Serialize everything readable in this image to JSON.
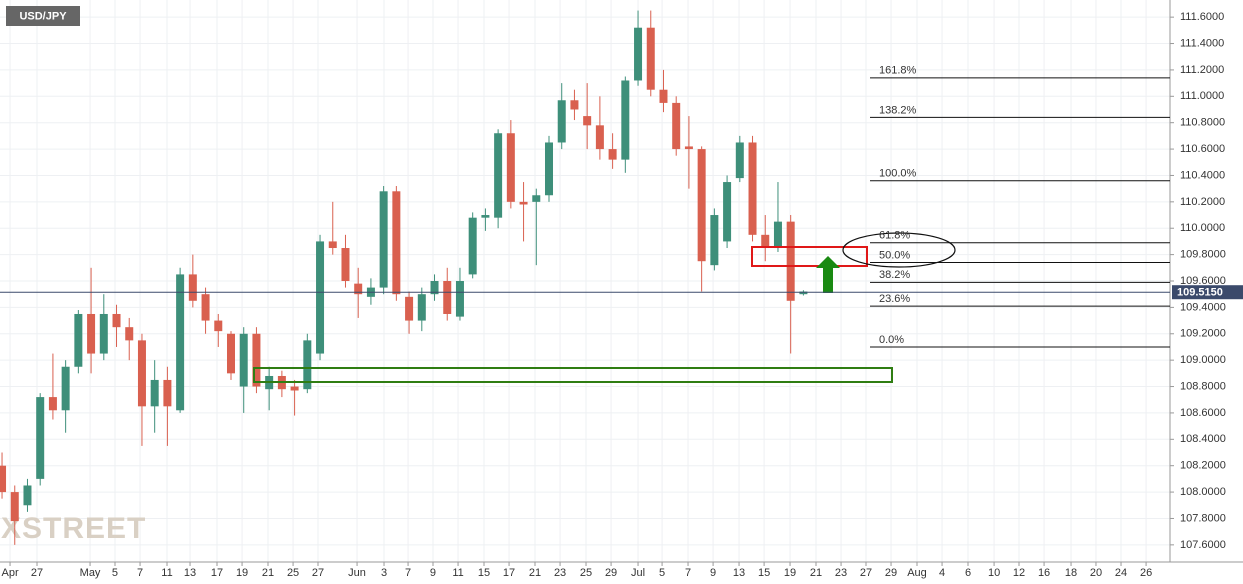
{
  "chart_data": {
    "type": "candlestick",
    "title": "USD/JPY",
    "watermark": "FXSTREET",
    "up_color": "#3e8f7a",
    "down_color": "#d9604f",
    "open": [
      108.2,
      108.0,
      107.9,
      108.1,
      108.72,
      108.62,
      108.95,
      109.35,
      109.05,
      109.35,
      109.25,
      109.15,
      108.65,
      108.85,
      108.62,
      109.65,
      109.5,
      109.3,
      109.2,
      108.8,
      109.2,
      108.78,
      108.88,
      108.8,
      108.78,
      109.05,
      109.9,
      109.85,
      109.58,
      109.48,
      109.55,
      110.28,
      109.48,
      109.3,
      109.5,
      109.6,
      109.33,
      109.65,
      110.08,
      110.08,
      110.72,
      110.2,
      110.2,
      110.25,
      110.65,
      110.97,
      110.85,
      110.78,
      110.6,
      110.52,
      111.12,
      111.52,
      111.05,
      110.95,
      110.62,
      110.6,
      109.72,
      109.9,
      110.38,
      110.65,
      109.95,
      109.85,
      110.05,
      109.5
    ],
    "high": [
      108.3,
      108.05,
      108.1,
      108.75,
      109.05,
      109.0,
      109.38,
      109.7,
      109.5,
      109.42,
      109.32,
      109.2,
      109.0,
      108.95,
      109.7,
      109.8,
      109.55,
      109.35,
      109.22,
      109.25,
      109.25,
      108.95,
      108.92,
      108.85,
      109.2,
      109.95,
      110.2,
      109.95,
      109.7,
      109.62,
      110.32,
      110.32,
      109.52,
      109.55,
      109.65,
      109.7,
      109.7,
      110.12,
      110.15,
      110.75,
      110.82,
      110.35,
      110.3,
      110.7,
      111.1,
      111.05,
      111.1,
      111.0,
      110.72,
      111.15,
      111.65,
      111.65,
      111.2,
      111.0,
      110.85,
      110.62,
      110.15,
      110.4,
      110.7,
      110.7,
      110.1,
      110.35,
      110.1,
      109.53
    ],
    "low": [
      107.95,
      107.6,
      107.85,
      108.05,
      108.55,
      108.45,
      108.9,
      108.9,
      109.0,
      109.1,
      109.0,
      108.35,
      108.45,
      108.35,
      108.6,
      109.4,
      109.2,
      109.1,
      108.85,
      108.6,
      108.75,
      108.62,
      108.72,
      108.58,
      108.75,
      109.0,
      109.8,
      109.55,
      109.32,
      109.42,
      109.5,
      109.45,
      109.2,
      109.22,
      109.45,
      109.3,
      109.3,
      109.62,
      109.98,
      110.0,
      110.15,
      109.9,
      109.72,
      110.2,
      110.6,
      110.82,
      110.6,
      110.52,
      110.45,
      110.42,
      111.08,
      111.0,
      110.88,
      110.55,
      110.3,
      109.52,
      109.68,
      109.85,
      110.35,
      109.9,
      109.75,
      109.82,
      109.05,
      109.49
    ],
    "close": [
      108.0,
      107.78,
      108.05,
      108.72,
      108.62,
      108.95,
      109.35,
      109.05,
      109.35,
      109.25,
      109.15,
      108.65,
      108.85,
      108.65,
      109.65,
      109.45,
      109.3,
      109.22,
      108.9,
      109.2,
      108.8,
      108.88,
      108.78,
      108.77,
      109.15,
      109.9,
      109.85,
      109.6,
      109.5,
      109.55,
      110.28,
      109.5,
      109.3,
      109.5,
      109.6,
      109.35,
      109.6,
      110.08,
      110.1,
      110.72,
      110.2,
      110.18,
      110.25,
      110.65,
      110.97,
      110.9,
      110.78,
      110.6,
      110.52,
      111.12,
      111.52,
      111.05,
      110.95,
      110.6,
      110.6,
      109.75,
      110.1,
      110.35,
      110.65,
      109.95,
      109.85,
      110.05,
      109.45,
      109.52
    ],
    "xlim": [
      -0.16,
      91.82
    ],
    "xticks": [
      {
        "value": 0.63,
        "label": "Apr"
      },
      {
        "value": 2.75,
        "label": "27"
      },
      {
        "value": 6.92,
        "label": "May"
      },
      {
        "value": 8.88,
        "label": "5"
      },
      {
        "value": 10.85,
        "label": "7"
      },
      {
        "value": 12.97,
        "label": "11"
      },
      {
        "value": 14.78,
        "label": "13"
      },
      {
        "value": 16.9,
        "label": "17"
      },
      {
        "value": 18.87,
        "label": "19"
      },
      {
        "value": 20.91,
        "label": "21"
      },
      {
        "value": 22.88,
        "label": "25"
      },
      {
        "value": 24.84,
        "label": "27"
      },
      {
        "value": 27.91,
        "label": "Jun"
      },
      {
        "value": 30.03,
        "label": "3"
      },
      {
        "value": 31.92,
        "label": "7"
      },
      {
        "value": 33.88,
        "label": "9"
      },
      {
        "value": 35.85,
        "label": "11"
      },
      {
        "value": 37.89,
        "label": "15"
      },
      {
        "value": 39.86,
        "label": "17"
      },
      {
        "value": 41.9,
        "label": "21"
      },
      {
        "value": 43.87,
        "label": "23"
      },
      {
        "value": 45.91,
        "label": "25"
      },
      {
        "value": 47.88,
        "label": "29"
      },
      {
        "value": 50,
        "label": "Jul"
      },
      {
        "value": 51.89,
        "label": "5"
      },
      {
        "value": 53.93,
        "label": "7"
      },
      {
        "value": 55.9,
        "label": "9"
      },
      {
        "value": 57.94,
        "label": "13"
      },
      {
        "value": 59.91,
        "label": "15"
      },
      {
        "value": 61.95,
        "label": "19"
      },
      {
        "value": 63.99,
        "label": "21"
      },
      {
        "value": 65.96,
        "label": "23"
      },
      {
        "value": 67.92,
        "label": "27"
      },
      {
        "value": 69.89,
        "label": "29"
      },
      {
        "value": 71.93,
        "label": "Aug"
      },
      {
        "value": 73.9,
        "label": "4"
      },
      {
        "value": 75.94,
        "label": "6"
      },
      {
        "value": 77.99,
        "label": "10"
      },
      {
        "value": 79.95,
        "label": "12"
      },
      {
        "value": 81.92,
        "label": "16"
      },
      {
        "value": 84.04,
        "label": "18"
      },
      {
        "value": 86,
        "label": "20"
      },
      {
        "value": 87.97,
        "label": "24"
      },
      {
        "value": 89.94,
        "label": "26"
      }
    ],
    "ylim": [
      107.47,
      111.73
    ],
    "yticks": [
      {
        "value": 107.6,
        "label": "107.6000"
      },
      {
        "value": 107.8,
        "label": "107.8000"
      },
      {
        "value": 108.0,
        "label": "108.0000"
      },
      {
        "value": 108.2,
        "label": "108.2000"
      },
      {
        "value": 108.4,
        "label": "108.4000"
      },
      {
        "value": 108.6,
        "label": "108.6000"
      },
      {
        "value": 108.8,
        "label": "108.8000"
      },
      {
        "value": 109.0,
        "label": "109.0000"
      },
      {
        "value": 109.2,
        "label": "109.2000"
      },
      {
        "value": 109.4,
        "label": "109.4000"
      },
      {
        "value": 109.6,
        "label": "109.6000"
      },
      {
        "value": 109.8,
        "label": "109.8000"
      },
      {
        "value": 110.0,
        "label": "110.0000"
      },
      {
        "value": 110.2,
        "label": "110.2000"
      },
      {
        "value": 110.4,
        "label": "110.4000"
      },
      {
        "value": 110.6,
        "label": "110.6000"
      },
      {
        "value": 110.8,
        "label": "110.8000"
      },
      {
        "value": 111.0,
        "label": "111.0000"
      },
      {
        "value": 111.2,
        "label": "111.2000"
      },
      {
        "value": 111.4,
        "label": "111.4000"
      },
      {
        "value": 111.6,
        "label": "111.6000"
      }
    ],
    "grid": true,
    "last_price": {
      "value": 109.515,
      "label": "109.5150"
    },
    "fib_levels": [
      {
        "label": "161.8%",
        "value": 111.14
      },
      {
        "label": "138.2%",
        "value": 110.84
      },
      {
        "label": "100.0%",
        "value": 110.36
      },
      {
        "label": "61.8%",
        "value": 109.89
      },
      {
        "label": "50.0%",
        "value": 109.74
      },
      {
        "label": "38.2%",
        "value": 109.59
      },
      {
        "label": "23.6%",
        "value": 109.41
      },
      {
        "label": "0.0%",
        "value": 109.1
      }
    ]
  }
}
